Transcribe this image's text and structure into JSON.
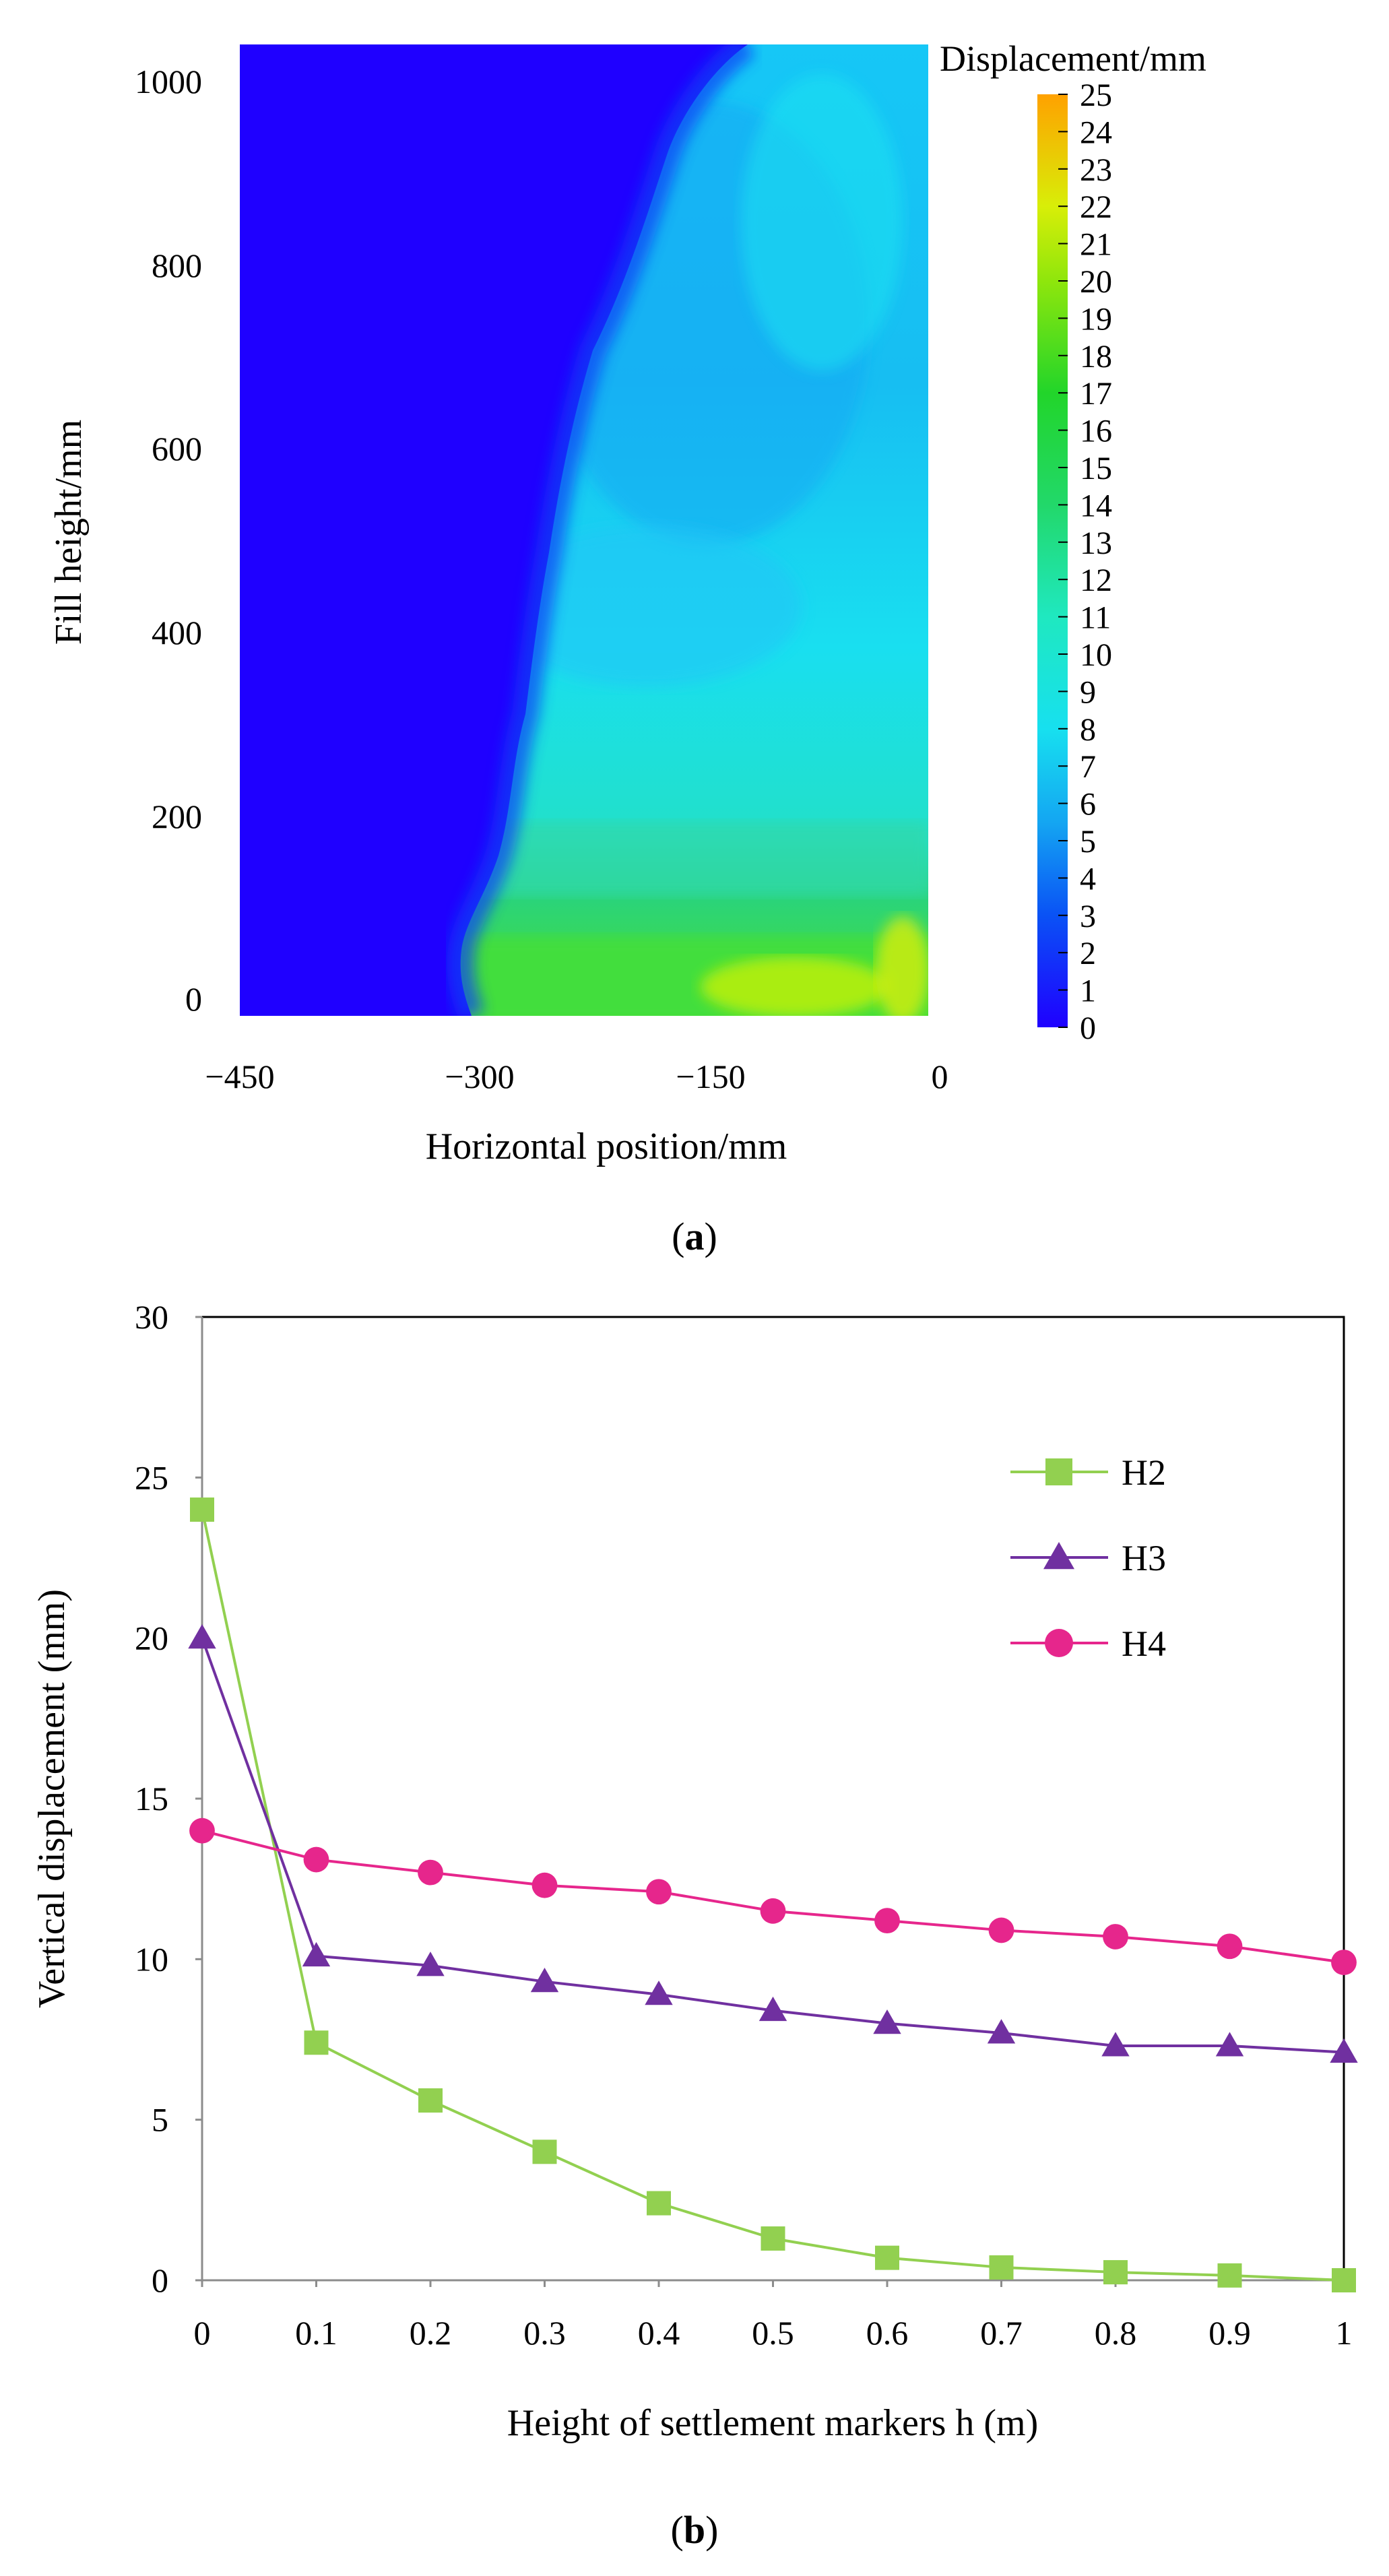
{
  "chart_data": [
    {
      "panel": "(a)",
      "panel_letter": "a",
      "type": "heatmap",
      "xlabel": "Horizontal position/mm",
      "ylabel": "Fill height/mm",
      "x_ticks": [
        -450,
        -300,
        -150,
        0
      ],
      "x_tick_labels": [
        "−450",
        "−300",
        "−150",
        "0"
      ],
      "y_ticks": [
        0,
        200,
        400,
        600,
        800,
        1000
      ],
      "xlim": [
        -450,
        0
      ],
      "ylim": [
        0,
        1040
      ],
      "colorbar": {
        "title": "Displacement/mm",
        "min": 0,
        "max": 25,
        "ticks": [
          0,
          1,
          2,
          3,
          4,
          5,
          6,
          7,
          8,
          9,
          10,
          11,
          12,
          13,
          14,
          15,
          16,
          17,
          18,
          19,
          20,
          21,
          22,
          23,
          24,
          25
        ]
      },
      "colors": {
        "low": "#1f00ff",
        "mid": "#17d8f0",
        "high": "#ffa100"
      },
      "description_regions": [
        {
          "region": "left of x≈-320..-230 boundary",
          "value_mm": 0
        },
        {
          "region": "upper right zone",
          "value_mm": 5
        },
        {
          "region": "middle right zone (y 200-450)",
          "value_mm": 7
        },
        {
          "region": "bottom band (y 0-100)",
          "value_mm": 17
        }
      ]
    },
    {
      "panel": "(b)",
      "panel_letter": "b",
      "type": "line",
      "xlabel": "Height of settlement markers h (m)",
      "ylabel": "Vertical displacement (mm)",
      "x": [
        0,
        0.1,
        0.2,
        0.3,
        0.4,
        0.5,
        0.6,
        0.7,
        0.8,
        0.9,
        1
      ],
      "x_tick_labels": [
        "0",
        "0.1",
        "0.2",
        "0.3",
        "0.4",
        "0.5",
        "0.6",
        "0.7",
        "0.8",
        "0.9",
        "1"
      ],
      "y_ticks": [
        0,
        5,
        10,
        15,
        20,
        25,
        30
      ],
      "xlim": [
        0,
        1
      ],
      "ylim": [
        0,
        30
      ],
      "legend_position": "top-right",
      "series": [
        {
          "name": "H2",
          "marker": "square",
          "color": "#92d050",
          "values": [
            24,
            7.4,
            5.6,
            4.0,
            2.4,
            1.3,
            0.7,
            0.4,
            0.25,
            0.15,
            0
          ]
        },
        {
          "name": "H3",
          "marker": "triangle",
          "color": "#7030a0",
          "values": [
            20,
            10.1,
            9.8,
            9.3,
            8.9,
            8.4,
            8.0,
            7.7,
            7.3,
            7.3,
            7.1
          ]
        },
        {
          "name": "H4",
          "marker": "circle",
          "color": "#e6268c",
          "values": [
            14,
            13.1,
            12.7,
            12.3,
            12.1,
            11.5,
            11.2,
            10.9,
            10.7,
            10.4,
            9.9
          ]
        }
      ]
    }
  ]
}
